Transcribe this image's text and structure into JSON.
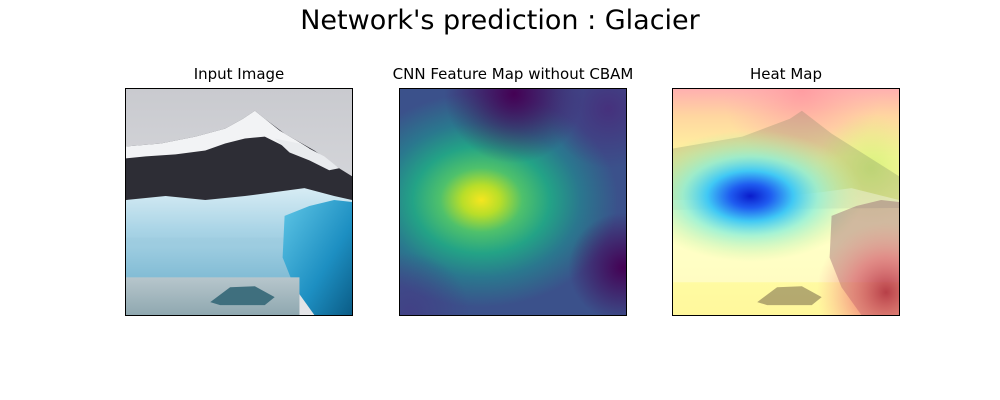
{
  "figure": {
    "title": "Network's prediction : Glacier"
  },
  "panels": [
    {
      "title": "Input Image"
    },
    {
      "title": "CNN Feature Map without CBAM"
    },
    {
      "title": "Heat Map"
    }
  ]
}
